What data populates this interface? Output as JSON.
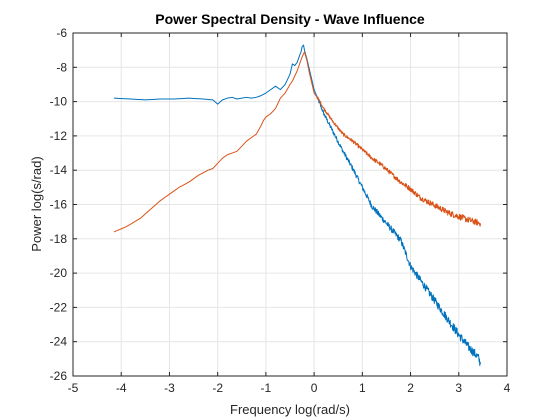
{
  "chart_data": {
    "type": "line",
    "title": "Power Spectral Density - Wave Influence",
    "xlabel": "Frequency log(rad/s)",
    "ylabel": "Power log(s/rad)",
    "xlim": [
      -5,
      4
    ],
    "ylim": [
      -26,
      -6
    ],
    "xticks": [
      -5,
      -4,
      -3,
      -2,
      -1,
      0,
      1,
      2,
      3,
      4
    ],
    "yticks": [
      -6,
      -8,
      -10,
      -12,
      -14,
      -16,
      -18,
      -20,
      -22,
      -24,
      -26
    ],
    "grid": true,
    "box": true,
    "series": [
      {
        "color": "#0072BD",
        "noise": 0.0,
        "noise_right": 0.25,
        "x": [
          -4.15,
          -3.8,
          -3.5,
          -3.2,
          -2.9,
          -2.6,
          -2.3,
          -2.1,
          -2.0,
          -1.9,
          -1.8,
          -1.7,
          -1.6,
          -1.5,
          -1.4,
          -1.3,
          -1.2,
          -1.1,
          -1.0,
          -0.9,
          -0.8,
          -0.7,
          -0.6,
          -0.5,
          -0.45,
          -0.4,
          -0.35,
          -0.3,
          -0.27,
          -0.25,
          -0.22,
          -0.2,
          -0.15,
          -0.1,
          -0.05,
          0.0,
          0.1,
          0.2,
          0.4,
          0.6,
          0.8,
          1.0,
          1.2,
          1.5,
          1.8,
          2.0,
          2.2,
          2.5,
          2.8,
          3.0,
          3.2,
          3.4,
          3.45
        ],
        "y": [
          -9.8,
          -9.85,
          -9.9,
          -9.85,
          -9.85,
          -9.8,
          -9.85,
          -9.9,
          -10.15,
          -9.9,
          -9.8,
          -9.75,
          -9.85,
          -9.8,
          -9.75,
          -9.8,
          -9.75,
          -9.65,
          -9.5,
          -9.3,
          -9.1,
          -9.3,
          -9.0,
          -8.4,
          -7.8,
          -7.9,
          -7.7,
          -7.3,
          -7.1,
          -6.8,
          -6.7,
          -7.0,
          -7.5,
          -8.1,
          -8.7,
          -9.3,
          -10.0,
          -10.7,
          -11.8,
          -12.9,
          -13.9,
          -15.0,
          -16.1,
          -17.1,
          -18.1,
          -19.6,
          -20.4,
          -21.6,
          -22.8,
          -23.6,
          -24.3,
          -24.9,
          -25.3
        ]
      },
      {
        "color": "#D95319",
        "noise": 0.0,
        "noise_right": 0.18,
        "x": [
          -4.15,
          -3.9,
          -3.6,
          -3.4,
          -3.2,
          -3.0,
          -2.8,
          -2.6,
          -2.4,
          -2.2,
          -2.1,
          -2.0,
          -1.9,
          -1.8,
          -1.6,
          -1.4,
          -1.3,
          -1.2,
          -1.1,
          -1.05,
          -1.0,
          -0.9,
          -0.8,
          -0.7,
          -0.6,
          -0.5,
          -0.45,
          -0.4,
          -0.35,
          -0.3,
          -0.25,
          -0.2,
          -0.15,
          -0.1,
          -0.05,
          0.0,
          0.1,
          0.2,
          0.4,
          0.6,
          0.8,
          1.0,
          1.2,
          1.4,
          1.6,
          1.8,
          2.0,
          2.2,
          2.4,
          2.6,
          2.8,
          3.0,
          3.2,
          3.45
        ],
        "y": [
          -17.6,
          -17.3,
          -16.8,
          -16.3,
          -15.8,
          -15.4,
          -15.0,
          -14.7,
          -14.3,
          -14.0,
          -13.9,
          -13.6,
          -13.3,
          -13.1,
          -12.9,
          -12.3,
          -12.1,
          -11.9,
          -11.4,
          -11.1,
          -10.9,
          -10.7,
          -10.4,
          -9.8,
          -9.5,
          -9.0,
          -8.8,
          -8.5,
          -8.2,
          -7.8,
          -7.4,
          -7.1,
          -7.6,
          -8.3,
          -8.9,
          -9.5,
          -9.9,
          -10.4,
          -11.2,
          -11.9,
          -12.3,
          -12.8,
          -13.3,
          -13.7,
          -14.2,
          -14.7,
          -15.1,
          -15.6,
          -15.9,
          -16.2,
          -16.5,
          -16.7,
          -16.9,
          -17.1
        ]
      }
    ]
  }
}
